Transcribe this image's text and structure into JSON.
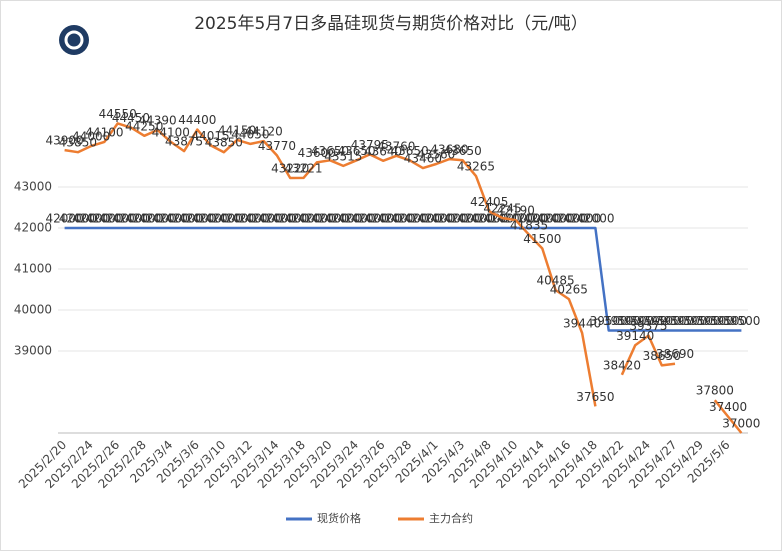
{
  "chart_data": {
    "type": "line",
    "title": "2025年5月7日多晶硅现货与期货价格对比（元/吨）",
    "categories": [
      "2025/2/20",
      null,
      "2025/2/24",
      null,
      "2025/2/26",
      null,
      "2025/2/28",
      null,
      "2025/3/4",
      null,
      "2025/3/6",
      null,
      "2025/3/10",
      null,
      "2025/3/12",
      null,
      "2025/3/14",
      null,
      "2025/3/18",
      null,
      "2025/3/20",
      null,
      "2025/3/24",
      null,
      "2025/3/26",
      null,
      "2025/3/28",
      null,
      "2025/4/1",
      null,
      "2025/4/3",
      null,
      "2025/4/8",
      null,
      "2025/4/10",
      null,
      "2025/4/14",
      null,
      "2025/4/16",
      null,
      "2025/4/18",
      null,
      "2025/4/22",
      null,
      "2025/4/24",
      null,
      "2025/4/27",
      null,
      "2025/4/29",
      null,
      "2025/5/6",
      null
    ],
    "series": [
      {
        "name": "现货价格",
        "color": "#4472c4",
        "values": [
          42000,
          42000,
          42000,
          42000,
          42000,
          42000,
          42000,
          42000,
          42000,
          42000,
          42000,
          42000,
          42000,
          42000,
          42000,
          42000,
          42000,
          42000,
          42000,
          42000,
          42000,
          42000,
          42000,
          42000,
          42000,
          42000,
          42000,
          42000,
          42000,
          42000,
          42000,
          42000,
          42000,
          42000,
          42000,
          42000,
          42000,
          42000,
          42000,
          42000,
          42000,
          39500,
          39500,
          39500,
          39500,
          39500,
          39500,
          39500,
          39500,
          39500,
          39500,
          39500
        ]
      },
      {
        "name": "主力合约",
        "color": "#ed7d31",
        "values": [
          43900,
          43850,
          44000,
          44100,
          44550,
          44450,
          44250,
          44390,
          44100,
          43875,
          44400,
          44015,
          43850,
          44150,
          44050,
          44120,
          43770,
          43220,
          43221,
          43600,
          43650,
          43515,
          43650,
          43795,
          43640,
          43760,
          43650,
          43460,
          43560,
          43680,
          43650,
          43265,
          42405,
          42245,
          42190,
          41835,
          41500,
          40485,
          40265,
          39440,
          37650,
          null,
          38420,
          39140,
          39375,
          38650,
          38690,
          null,
          null,
          37800,
          37400,
          37000
        ]
      }
    ],
    "ylim": [
      37000,
      46000
    ],
    "yticks": [
      39000,
      40000,
      41000,
      42000,
      43000
    ],
    "grid": true,
    "legend": "bottom"
  }
}
